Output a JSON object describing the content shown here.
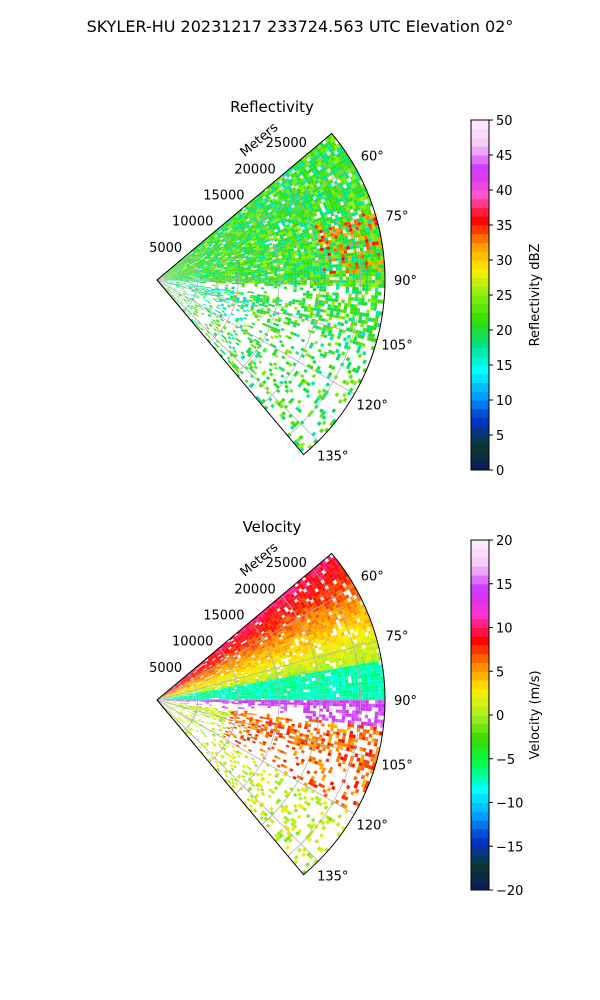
{
  "figure": {
    "title": "SKYLER-HU  20231217  233724.563 UTC Elevation 02°"
  },
  "chart_data": [
    {
      "type": "heatmap",
      "projection": "polar-sector",
      "title": "Reflectivity",
      "range_label": "Meters",
      "range_ticks": [
        5000,
        10000,
        15000,
        20000,
        25000
      ],
      "range_tick_labels": [
        "5000",
        "10000",
        "15000",
        "20000",
        "25000"
      ],
      "range_max_m": 28000,
      "azimuth_range_deg": [
        50,
        140
      ],
      "azimuth_ticks": [
        60,
        75,
        90,
        105,
        120,
        135
      ],
      "azimuth_tick_labels": [
        "60°",
        "75°",
        "90°",
        "105°",
        "120°",
        "135°"
      ],
      "grid": true,
      "colorbar": {
        "label": "Reflectivity dBZ",
        "min": 0,
        "max": 50,
        "ticks": [
          0,
          5,
          10,
          15,
          20,
          25,
          30,
          35,
          40,
          45,
          50
        ],
        "tick_labels": [
          "0",
          "5",
          "10",
          "15",
          "20",
          "25",
          "30",
          "35",
          "40",
          "45",
          "50"
        ],
        "stops": [
          "#0b1a5e",
          "#0b3a2e",
          "#0033cc",
          "#00a0ff",
          "#00ffff",
          "#00e28a",
          "#33dd00",
          "#88ee11",
          "#ffee00",
          "#ff9900",
          "#ff0000",
          "#ff55cc",
          "#cc33ff",
          "#f6c7f6",
          "#fff0ff"
        ]
      }
    },
    {
      "type": "heatmap",
      "projection": "polar-sector",
      "title": "Velocity",
      "range_label": "Meters",
      "range_ticks": [
        5000,
        10000,
        15000,
        20000,
        25000
      ],
      "range_tick_labels": [
        "5000",
        "10000",
        "15000",
        "20000",
        "25000"
      ],
      "range_max_m": 28000,
      "azimuth_range_deg": [
        50,
        140
      ],
      "azimuth_ticks": [
        60,
        75,
        90,
        105,
        120,
        135
      ],
      "azimuth_tick_labels": [
        "60°",
        "75°",
        "90°",
        "105°",
        "120°",
        "135°"
      ],
      "grid": true,
      "colorbar": {
        "label": "Velocity (m/s)",
        "min": -20,
        "max": 20,
        "ticks": [
          -20,
          -15,
          -10,
          -5,
          0,
          5,
          10,
          15,
          20
        ],
        "tick_labels": [
          "−20",
          "−15",
          "−10",
          "−5",
          "0",
          "5",
          "10",
          "15",
          "20"
        ],
        "stops": [
          "#0b1a5e",
          "#0b3a2e",
          "#0033cc",
          "#00a0ff",
          "#00ffff",
          "#00ff55",
          "#33dd00",
          "#aaee22",
          "#ffee00",
          "#ff8800",
          "#ff0000",
          "#ff33cc",
          "#cc33ff",
          "#f6c7f6",
          "#fff0ff"
        ]
      }
    }
  ]
}
